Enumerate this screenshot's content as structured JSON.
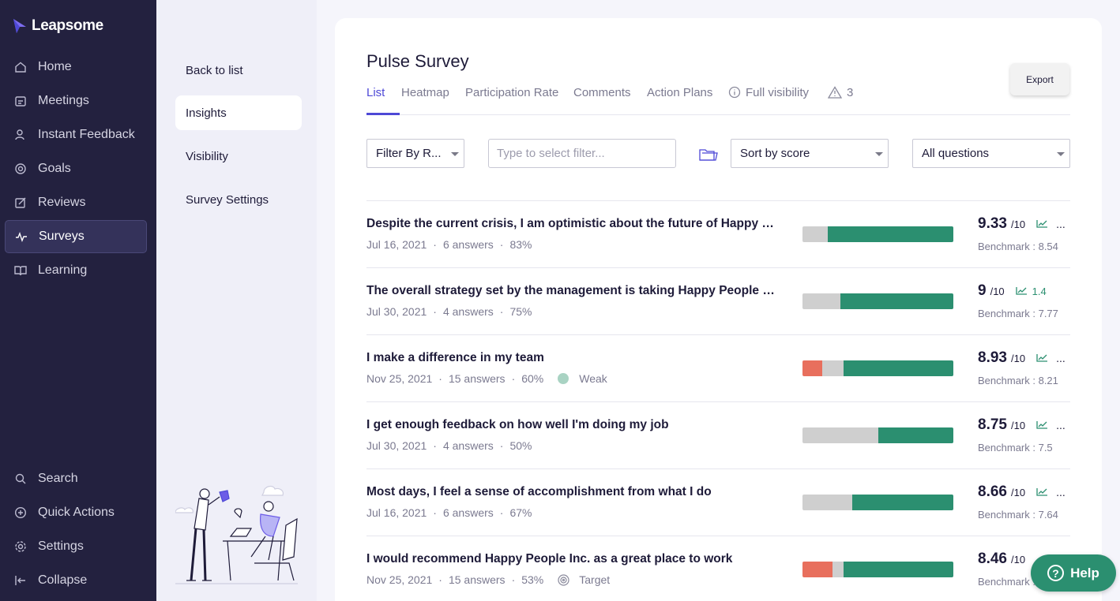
{
  "app": {
    "name": "Leapsome"
  },
  "nav": {
    "items": [
      {
        "label": "Home",
        "icon": "home-icon"
      },
      {
        "label": "Meetings",
        "icon": "meetings-icon"
      },
      {
        "label": "Instant Feedback",
        "icon": "feedback-icon"
      },
      {
        "label": "Goals",
        "icon": "goals-icon"
      },
      {
        "label": "Reviews",
        "icon": "reviews-icon"
      },
      {
        "label": "Surveys",
        "icon": "surveys-icon",
        "active": true
      },
      {
        "label": "Learning",
        "icon": "learning-icon"
      }
    ],
    "bottom": [
      {
        "label": "Search",
        "icon": "search-icon"
      },
      {
        "label": "Quick Actions",
        "icon": "plus-circle-icon"
      },
      {
        "label": "Settings",
        "icon": "gear-icon"
      },
      {
        "label": "Collapse",
        "icon": "collapse-icon"
      }
    ]
  },
  "subnav": {
    "items": [
      {
        "label": "Back to list"
      },
      {
        "label": "Insights",
        "active": true
      },
      {
        "label": "Visibility"
      },
      {
        "label": "Survey Settings"
      }
    ]
  },
  "page": {
    "title": "Pulse Survey",
    "export_label": "Export",
    "tabs": [
      {
        "label": "List",
        "active": true
      },
      {
        "label": "Heatmap"
      },
      {
        "label": "Participation Rate"
      },
      {
        "label": "Comments"
      },
      {
        "label": "Action Plans"
      },
      {
        "label": "Full visibility",
        "icon": "info-icon"
      },
      {
        "label": "3",
        "icon": "warning-icon"
      }
    ],
    "filters": {
      "filter_by": "Filter By R...",
      "filter_placeholder": "Type to select filter...",
      "sort": "Sort by score",
      "questions": "All questions"
    }
  },
  "questions": [
    {
      "text": "Despite the current crisis, I am optimistic about the future of Happy Peo...",
      "date": "Jul 16, 2021",
      "answers": "6 answers",
      "percent": "83%",
      "score": "9.33",
      "out_of": "/10",
      "delta": "",
      "benchmark": "Benchmark : 8.54",
      "dist": {
        "red": 0,
        "grey": 17,
        "green": 83
      }
    },
    {
      "text": "The overall strategy set by the management is taking Happy People Inc....",
      "date": "Jul 30, 2021",
      "answers": "4 answers",
      "percent": "75%",
      "score": "9",
      "out_of": "/10",
      "delta": "1.4",
      "benchmark": "Benchmark : 7.77",
      "dist": {
        "red": 0,
        "grey": 25,
        "green": 75
      }
    },
    {
      "text": "I make a difference in my team",
      "date": "Nov 25, 2021",
      "answers": "15 answers",
      "percent": "60%",
      "tag": "Weak",
      "score": "8.93",
      "out_of": "/10",
      "delta": "",
      "benchmark": "Benchmark : 8.21",
      "dist": {
        "red": 13,
        "grey": 14,
        "green": 73
      }
    },
    {
      "text": "I get enough feedback on how well I'm doing my job",
      "date": "Jul 30, 2021",
      "answers": "4 answers",
      "percent": "50%",
      "score": "8.75",
      "out_of": "/10",
      "delta": "",
      "benchmark": "Benchmark : 7.5",
      "dist": {
        "red": 0,
        "grey": 50,
        "green": 50
      }
    },
    {
      "text": "Most days, I feel a sense of accomplishment from what I do",
      "date": "Jul 16, 2021",
      "answers": "6 answers",
      "percent": "67%",
      "score": "8.66",
      "out_of": "/10",
      "delta": "",
      "benchmark": "Benchmark : 7.64",
      "dist": {
        "red": 0,
        "grey": 33,
        "green": 67
      }
    },
    {
      "text": "I would recommend Happy People Inc. as a great place to work",
      "date": "Nov 25, 2021",
      "answers": "15 answers",
      "percent": "53%",
      "tag": "Target",
      "score": "8.46",
      "out_of": "/10",
      "delta": "",
      "benchmark": "Benchmark : 8.",
      "dist": {
        "red": 20,
        "grey": 7,
        "green": 73
      }
    }
  ],
  "help": {
    "label": "Help"
  },
  "colors": {
    "nav_bg": "#23213f",
    "accent": "#4e49d6",
    "positive": "#2b8f70",
    "negative": "#e86f5d",
    "neutral": "#cfcfcf"
  }
}
